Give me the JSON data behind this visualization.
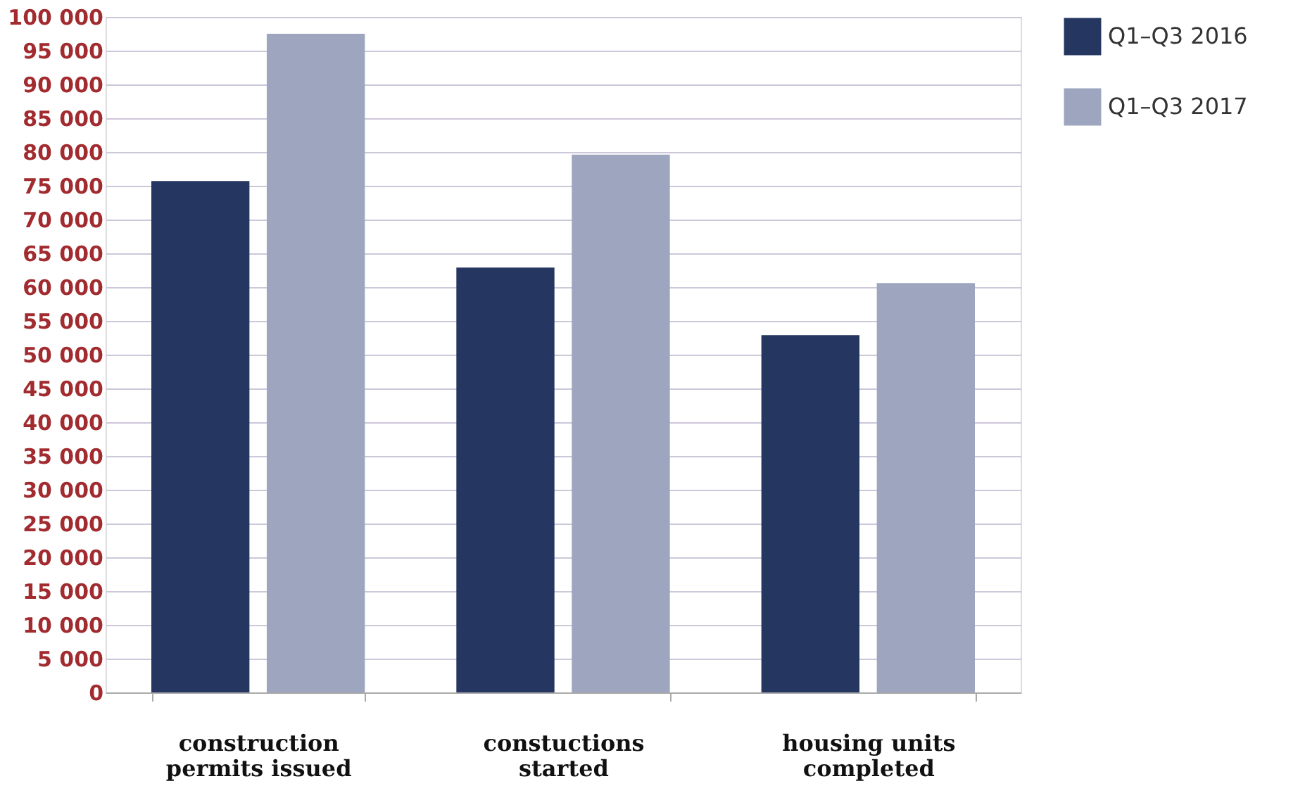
{
  "chart_data": {
    "type": "bar",
    "categories": [
      "construction permits issued",
      "constuctions started",
      "housing units completed"
    ],
    "series": [
      {
        "name": "Q1–Q3 2016",
        "color": "#253761",
        "values": [
          75700,
          62900,
          52900
        ]
      },
      {
        "name": "Q1–Q3 2017",
        "color": "#9ea6bf",
        "values": [
          97500,
          79600,
          60600
        ]
      }
    ],
    "ylim": [
      0,
      100000
    ],
    "yticks": [
      {
        "value": 0,
        "label": "0"
      },
      {
        "value": 5000,
        "label": "5 000"
      },
      {
        "value": 10000,
        "label": "10 000"
      },
      {
        "value": 15000,
        "label": "15 000"
      },
      {
        "value": 20000,
        "label": "20 000"
      },
      {
        "value": 25000,
        "label": "25 000"
      },
      {
        "value": 30000,
        "label": "30 000"
      },
      {
        "value": 35000,
        "label": "35 000"
      },
      {
        "value": 40000,
        "label": "40 000"
      },
      {
        "value": 45000,
        "label": "45 000"
      },
      {
        "value": 50000,
        "label": "50 000"
      },
      {
        "value": 55000,
        "label": "55 000"
      },
      {
        "value": 60000,
        "label": "60 000"
      },
      {
        "value": 65000,
        "label": "65 000"
      },
      {
        "value": 70000,
        "label": "70 000"
      },
      {
        "value": 75000,
        "label": "75 000"
      },
      {
        "value": 80000,
        "label": "80 000"
      },
      {
        "value": 85000,
        "label": "85 000"
      },
      {
        "value": 90000,
        "label": "90 000"
      },
      {
        "value": 95000,
        "label": "95 000"
      },
      {
        "value": 100000,
        "label": "100 000"
      }
    ],
    "grid": "y",
    "legend": "right"
  }
}
